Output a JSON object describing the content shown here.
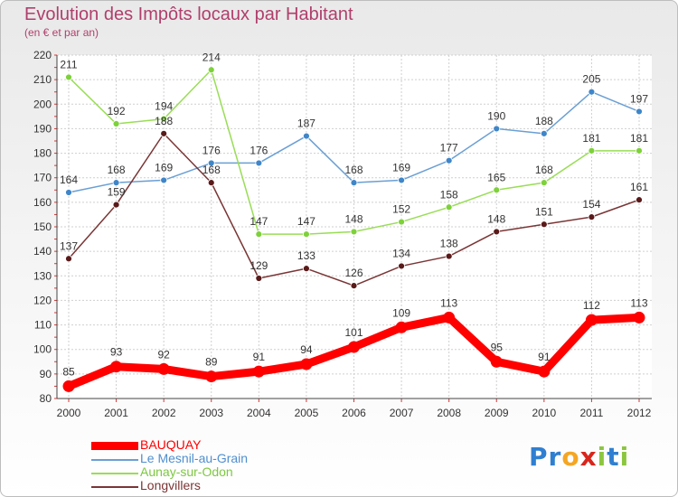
{
  "header": {
    "title": "Evolution des Impôts locaux par Habitant",
    "subtitle": "(en € et par an)"
  },
  "brand": {
    "logo_letters": [
      "P",
      "r",
      "o",
      "x",
      "i",
      "t",
      "i"
    ],
    "logo_colors": [
      "#2f7fd1",
      "#2f7fd1",
      "#f5a623",
      "#d9261c",
      "#8cc63f",
      "#2f7fd1",
      "#8cc63f"
    ]
  },
  "chart_data": {
    "type": "line",
    "title": "Evolution des Impôts locaux par Habitant",
    "subtitle": "(en € et par an)",
    "xlabel": "",
    "ylabel": "",
    "x": [
      "2000",
      "2001",
      "2002",
      "2003",
      "2004",
      "2005",
      "2006",
      "2007",
      "2008",
      "2009",
      "2010",
      "2011",
      "2012"
    ],
    "ylim": [
      80,
      220
    ],
    "yticks": [
      80,
      90,
      100,
      110,
      120,
      130,
      140,
      150,
      160,
      170,
      180,
      190,
      200,
      210,
      220
    ],
    "grid": true,
    "legend_position": "bottom-left",
    "series": [
      {
        "name": "BAUQUAY",
        "color": "#ff0000",
        "values": [
          85,
          93,
          92,
          89,
          91,
          94,
          101,
          109,
          113,
          95,
          91,
          112,
          113
        ]
      },
      {
        "name": "Le Mesnil-au-Grain",
        "color": "#6a9fd4",
        "marker_color": "#3f86c9",
        "values": [
          164,
          168,
          169,
          176,
          176,
          187,
          168,
          169,
          177,
          190,
          188,
          205,
          197
        ]
      },
      {
        "name": "Aunay-sur-Odon",
        "color": "#99dd55",
        "marker_color": "#7ed13a",
        "values": [
          211,
          192,
          194,
          214,
          147,
          147,
          148,
          152,
          158,
          165,
          168,
          181,
          181
        ]
      },
      {
        "name": "Longvillers",
        "color": "#7a3535",
        "marker_color": "#5a1a1a",
        "values": [
          137,
          159,
          188,
          168,
          129,
          133,
          126,
          134,
          138,
          148,
          151,
          154,
          161
        ]
      }
    ]
  }
}
